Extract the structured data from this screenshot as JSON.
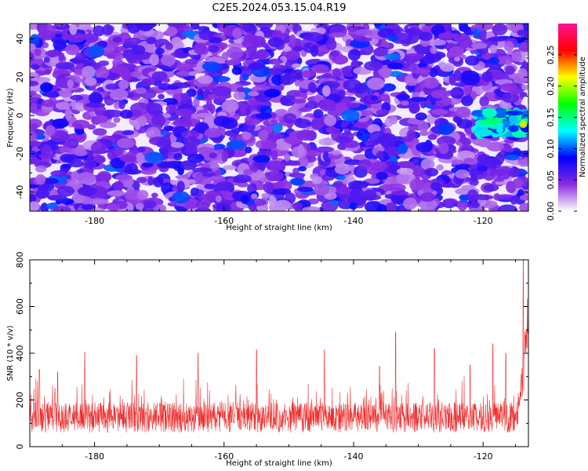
{
  "title": "C2E5.2024.053.15.04.R19",
  "chart_data": [
    {
      "type": "heatmap",
      "xlabel": "Height of straight line (km)",
      "ylabel": "Frequency (Hz)",
      "xlim": [
        -190,
        -113
      ],
      "ylim": [
        -50,
        48
      ],
      "xticks": [
        -180,
        -160,
        -140,
        -120
      ],
      "yticks": [
        -40,
        -20,
        0,
        20,
        40
      ],
      "colorbar": {
        "label": "Normalized spectral amplitude",
        "range": [
          0,
          0.3
        ],
        "ticks": [
          "0.00",
          "0.05",
          "0.10",
          "0.15",
          "0.20",
          "0.25"
        ],
        "colors": [
          "#ffffff",
          "#8a2be2",
          "#0000ff",
          "#00ffff",
          "#00ff00",
          "#ffff00",
          "#ff0000",
          "#ff1493"
        ]
      },
      "hotspot": {
        "x_range": [
          -121,
          -113
        ],
        "y_range": [
          -10,
          2
        ],
        "peak_value": 0.22
      },
      "background_level": [
        0.02,
        0.08
      ]
    },
    {
      "type": "line",
      "xlabel": "Height of straight line (km)",
      "ylabel": "SNR (10 * v/v)",
      "xlim": [
        -190,
        -113
      ],
      "ylim": [
        0,
        800
      ],
      "xticks": [
        -180,
        -160,
        -140,
        -120
      ],
      "yticks": [
        0,
        200,
        400,
        600,
        800
      ],
      "color": "#ee3030",
      "baseline_mean": 125,
      "spike_points": [
        {
          "x": -188.5,
          "y": 330
        },
        {
          "x": -185.7,
          "y": 320
        },
        {
          "x": -181.5,
          "y": 405
        },
        {
          "x": -173.5,
          "y": 390
        },
        {
          "x": -164.0,
          "y": 400
        },
        {
          "x": -155.0,
          "y": 415
        },
        {
          "x": -144.5,
          "y": 415
        },
        {
          "x": -136.0,
          "y": 345
        },
        {
          "x": -133.5,
          "y": 490
        },
        {
          "x": -127.5,
          "y": 420
        },
        {
          "x": -122.0,
          "y": 350
        },
        {
          "x": -118.5,
          "y": 440
        },
        {
          "x": -116.5,
          "y": 400
        }
      ],
      "rise_start_x": -115,
      "peak": {
        "x": -113.8,
        "y": 800
      }
    }
  ]
}
